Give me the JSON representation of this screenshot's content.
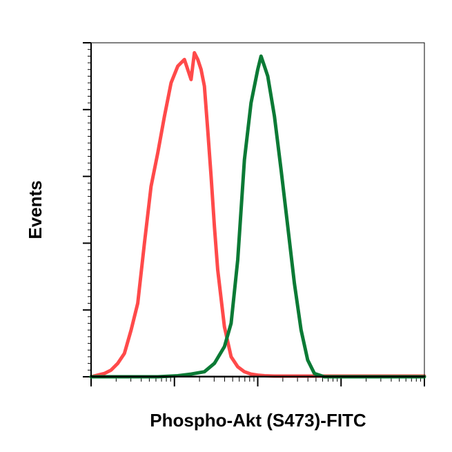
{
  "chart_data": {
    "type": "line",
    "title": "",
    "xlabel": "Phospho-Akt (S473)-FITC",
    "ylabel": "Events",
    "xscale": "log",
    "xlim": [
      0,
      1
    ],
    "ylim": [
      0,
      1
    ],
    "grid": false,
    "legend": "none",
    "tick_labels_shown": false,
    "series": [
      {
        "color": "#ff4a4a",
        "x": [
          0.0,
          0.02,
          0.04,
          0.06,
          0.08,
          0.1,
          0.12,
          0.14,
          0.16,
          0.18,
          0.2,
          0.22,
          0.24,
          0.26,
          0.28,
          0.3,
          0.31,
          0.32,
          0.33,
          0.34,
          0.35,
          0.36,
          0.37,
          0.38,
          0.4,
          0.42,
          0.44,
          0.46,
          0.48,
          0.5,
          0.52,
          0.55,
          0.6,
          0.65,
          0.7,
          0.8,
          0.9,
          1.0
        ],
        "y": [
          0.0,
          0.005,
          0.01,
          0.02,
          0.04,
          0.07,
          0.14,
          0.22,
          0.4,
          0.57,
          0.67,
          0.78,
          0.88,
          0.93,
          0.95,
          0.89,
          0.97,
          0.95,
          0.92,
          0.87,
          0.74,
          0.6,
          0.45,
          0.32,
          0.15,
          0.06,
          0.03,
          0.015,
          0.008,
          0.005,
          0.003,
          0.002,
          0.002,
          0.002,
          0.002,
          0.002,
          0.002,
          0.002
        ]
      },
      {
        "color": "#0b7a35",
        "x": [
          0.0,
          0.1,
          0.2,
          0.26,
          0.3,
          0.34,
          0.37,
          0.4,
          0.42,
          0.44,
          0.46,
          0.48,
          0.5,
          0.51,
          0.52,
          0.53,
          0.55,
          0.57,
          0.59,
          0.61,
          0.63,
          0.65,
          0.67,
          0.7,
          0.75,
          0.85,
          1.0
        ],
        "y": [
          0.0,
          0.0,
          0.0,
          0.003,
          0.008,
          0.015,
          0.04,
          0.09,
          0.16,
          0.35,
          0.65,
          0.82,
          0.92,
          0.96,
          0.93,
          0.9,
          0.78,
          0.62,
          0.45,
          0.28,
          0.14,
          0.05,
          0.01,
          0.0,
          0.0,
          0.0,
          0.0
        ]
      }
    ]
  }
}
